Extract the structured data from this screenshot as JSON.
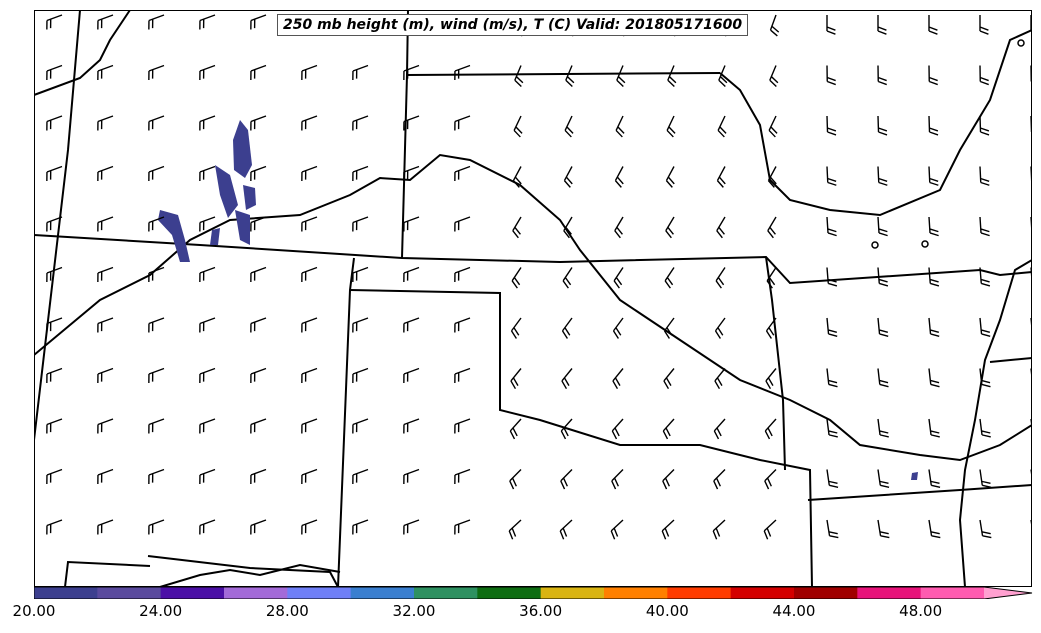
{
  "title": "250 mb height (m), wind (m/s), T (C) Valid: 201805171600",
  "colorbar": {
    "min": 20,
    "max": 52,
    "step": 2,
    "extend": "max",
    "colors": [
      "#3c3f8f",
      "#5a4a9e",
      "#4b0fa6",
      "#a36ad8",
      "#6f7ff7",
      "#3a7fd0",
      "#2e9161",
      "#0e6d12",
      "#d9b412",
      "#ff8000",
      "#ff3c00",
      "#d40000",
      "#a00000",
      "#e8137a",
      "#ff5bb0",
      "#ffa0d0"
    ],
    "tick_labels": [
      "20.00",
      "24.00",
      "28.00",
      "32.00",
      "36.00",
      "40.00",
      "44.00",
      "48.00"
    ]
  },
  "temperature_shading": {
    "color": "#3c3f8f",
    "band": "20.00–22.00"
  }
}
